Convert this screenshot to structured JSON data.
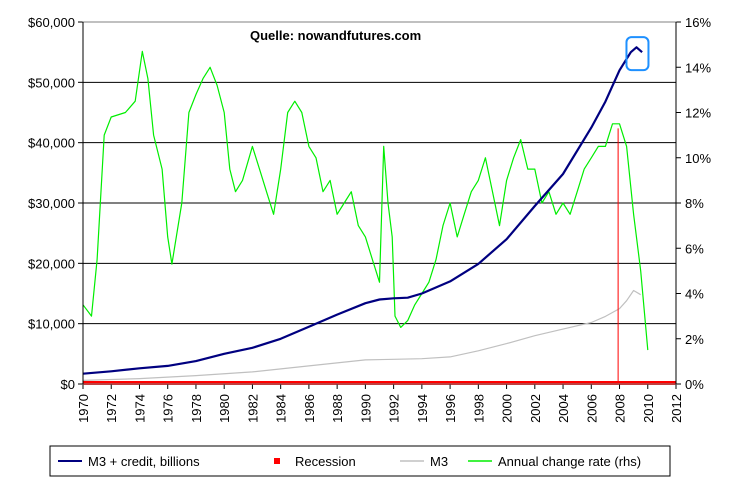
{
  "chart_data": {
    "type": "line",
    "title": "",
    "annotation": "Quelle: nowandfutures.com",
    "xlabel": "",
    "ylabel": "",
    "y2label": "",
    "xlim": [
      1970,
      2012
    ],
    "ylim": [
      0,
      60000
    ],
    "y2lim": [
      0,
      16
    ],
    "x_ticks": [
      "1970",
      "1972",
      "1974",
      "1976",
      "1978",
      "1980",
      "1982",
      "1984",
      "1986",
      "1988",
      "1990",
      "1992",
      "1994",
      "1996",
      "1998",
      "2000",
      "2002",
      "2004",
      "2006",
      "2008",
      "2010",
      "2012"
    ],
    "y_ticks": [
      "$0",
      "$10,000",
      "$20,000",
      "$30,000",
      "$40,000",
      "$50,000",
      "$60,000"
    ],
    "y2_ticks": [
      "0%",
      "2%",
      "4%",
      "6%",
      "8%",
      "10%",
      "12%",
      "14%",
      "16%"
    ],
    "grid": "horizontal",
    "legend_position": "bottom",
    "series": [
      {
        "name": "M3 + credit, billions",
        "axis": "left",
        "color": "#000080",
        "x": [
          1970,
          1972,
          1974,
          1976,
          1978,
          1980,
          1982,
          1984,
          1986,
          1988,
          1990,
          1991,
          1992,
          1993,
          1994,
          1996,
          1998,
          2000,
          2002,
          2004,
          2006,
          2007,
          2008,
          2008.8,
          2009.2,
          2009.6
        ],
        "y": [
          1700,
          2100,
          2600,
          3000,
          3800,
          5000,
          6000,
          7500,
          9500,
          11500,
          13400,
          14000,
          14200,
          14300,
          15000,
          17000,
          19900,
          24000,
          29500,
          34800,
          42500,
          46800,
          52000,
          55000,
          55800,
          55000
        ]
      },
      {
        "name": "M3",
        "axis": "left",
        "color": "#c0c0c0",
        "x": [
          1970,
          1974,
          1978,
          1982,
          1986,
          1988,
          1990,
          1992,
          1994,
          1996,
          1998,
          2000,
          2002,
          2004,
          2006,
          2007,
          2008,
          2008.5,
          2009,
          2009.5
        ],
        "y": [
          600,
          900,
          1400,
          2000,
          3000,
          3500,
          4000,
          4100,
          4200,
          4500,
          5500,
          6700,
          8000,
          9100,
          10200,
          11200,
          12500,
          13800,
          15500,
          14800
        ]
      },
      {
        "name": "Annual change rate (rhs)",
        "axis": "right",
        "color": "#00ee00",
        "x": [
          1970,
          1970.6,
          1971,
          1971.5,
          1972,
          1973,
          1973.7,
          1974.2,
          1974.6,
          1975,
          1975.6,
          1976,
          1976.3,
          1977,
          1977.5,
          1978,
          1978.5,
          1979,
          1979.5,
          1980,
          1980.4,
          1980.8,
          1981.3,
          1982,
          1982.5,
          1983,
          1983.5,
          1984,
          1984.5,
          1985,
          1985.5,
          1986,
          1986.5,
          1987,
          1987.5,
          1988,
          1988.5,
          1989,
          1989.5,
          1990,
          1990.5,
          1991,
          1991.3,
          1991.6,
          1991.9,
          1992.1,
          1992.5,
          1993,
          1993.5,
          1994,
          1994.5,
          1995,
          1995.5,
          1996,
          1996.5,
          1997,
          1997.5,
          1998,
          1998.5,
          1999,
          1999.5,
          2000,
          2000.5,
          2001,
          2001.5,
          2002,
          2002.5,
          2003,
          2003.5,
          2004,
          2004.5,
          2005,
          2005.5,
          2006,
          2006.5,
          2007,
          2007.5,
          2008,
          2008.5,
          2009,
          2009.5,
          2010
        ],
        "y": [
          3.5,
          3,
          5.5,
          11,
          11.8,
          12,
          12.5,
          14.7,
          13.5,
          11,
          9.5,
          6.5,
          5.3,
          8,
          12,
          12.8,
          13.5,
          14,
          13.2,
          12,
          9.5,
          8.5,
          9,
          10.5,
          9.5,
          8.5,
          7.5,
          9.5,
          12,
          12.5,
          12,
          10.5,
          10,
          8.5,
          9,
          7.5,
          8,
          8.5,
          7,
          6.5,
          5.5,
          4.5,
          10.5,
          8,
          6.5,
          3,
          2.5,
          2.8,
          3.5,
          4,
          4.5,
          5.5,
          7,
          8,
          6.5,
          7.5,
          8.5,
          9,
          10,
          8.5,
          7,
          9,
          10,
          10.8,
          9.5,
          9.5,
          8,
          8.5,
          7.5,
          8,
          7.5,
          8.5,
          9.5,
          10,
          10.5,
          10.5,
          11.5,
          11.5,
          10.5,
          7.5,
          5,
          1.5
        ]
      },
      {
        "name": "Recession",
        "axis": "left",
        "color": "#ff0000",
        "x": [
          1970,
          2012
        ],
        "y": [
          0,
          0
        ]
      }
    ],
    "markers": [
      {
        "type": "vertical-line",
        "x": 2007.9,
        "color": "#ff0000"
      },
      {
        "type": "highlight-box",
        "x": 2009.2,
        "y": 55500,
        "color": "#1e90ff"
      }
    ]
  },
  "legend": [
    {
      "label": "M3 + credit, billions",
      "color": "#000080",
      "swatch": "line"
    },
    {
      "label": "Recession",
      "color": "#ff0000",
      "swatch": "square"
    },
    {
      "label": "M3",
      "color": "#c0c0c0",
      "swatch": "line"
    },
    {
      "label": "Annual change rate (rhs)",
      "color": "#00ee00",
      "swatch": "line"
    }
  ]
}
